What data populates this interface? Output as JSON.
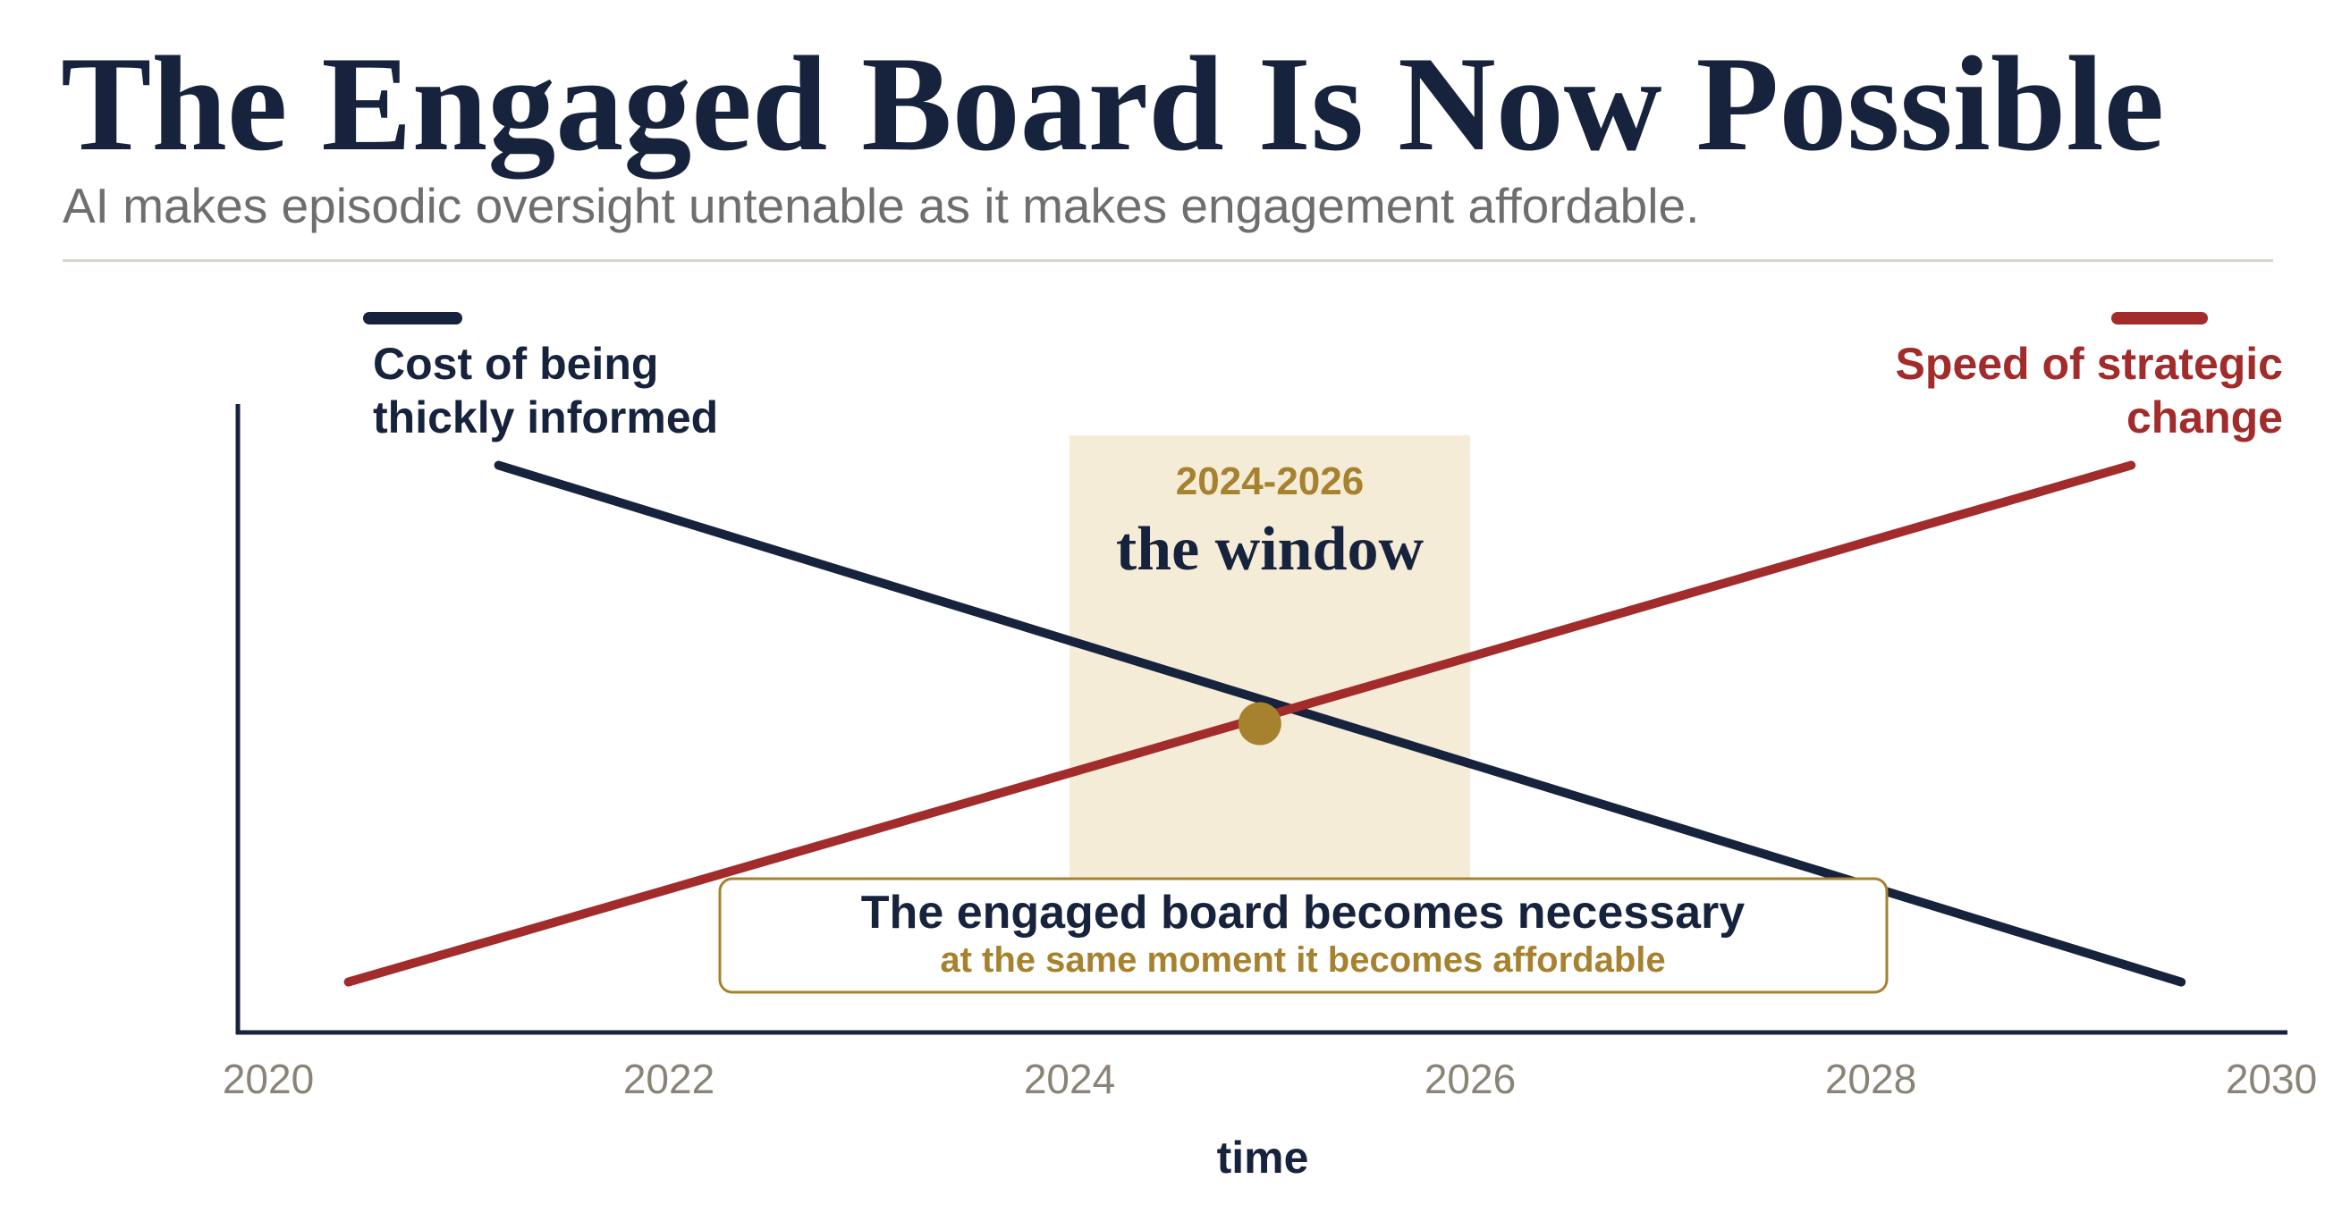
{
  "title": "The Engaged Board Is Now Possible",
  "subtitle": "AI makes episodic oversight untenable as it makes engagement affordable.",
  "colors": {
    "navy": "#17233d",
    "red": "#a22b2b",
    "gold": "#a6822f",
    "window_fill": "#f5ecd8",
    "tick": "#8a8478"
  },
  "chart_data": {
    "type": "line",
    "xlabel": "time",
    "ylabel": "",
    "xlim": [
      2020,
      2030
    ],
    "ylim": [
      0,
      1
    ],
    "x_ticks": [
      "2020",
      "2022",
      "2024",
      "2026",
      "2028",
      "2030"
    ],
    "grid": false,
    "series": [
      {
        "name": "Cost of being thickly informed",
        "label_lines": [
          "Cost of being",
          "thickly informed"
        ],
        "color": "#17233d",
        "points": [
          [
            2021.15,
            0.9
          ],
          [
            2029.55,
            0.08
          ]
        ]
      },
      {
        "name": "Speed of strategic change",
        "label_lines": [
          "Speed of strategic",
          "change"
        ],
        "color": "#a22b2b",
        "points": [
          [
            2020.4,
            0.08
          ],
          [
            2029.3,
            0.9
          ]
        ]
      }
    ],
    "window": {
      "range": [
        2024,
        2026
      ],
      "year_label": "2024-2026",
      "label": "the window"
    },
    "crossing_point": [
      2024.95,
      0.49
    ],
    "callout": {
      "title": "The engaged board becomes necessary",
      "subtitle": "at the same moment it becomes affordable"
    }
  }
}
